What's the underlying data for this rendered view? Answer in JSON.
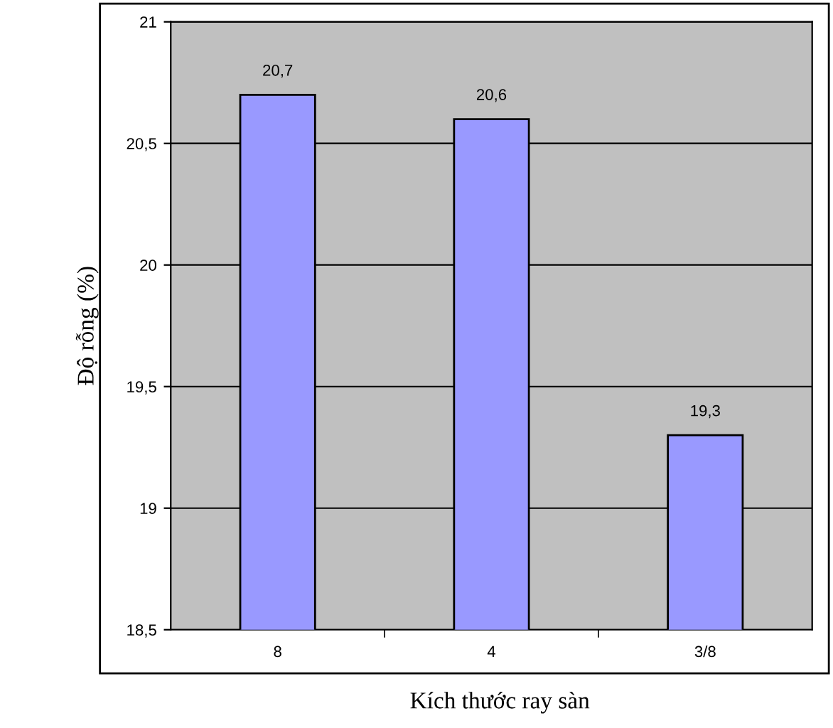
{
  "chart_data": {
    "type": "bar",
    "xlabel": "Kích thước ray sàn",
    "ylabel": "Độ rỗng (%)",
    "categories": [
      "8",
      "4",
      "3/8"
    ],
    "values": [
      20.7,
      20.6,
      19.3
    ],
    "value_labels": [
      "20,7",
      "20,6",
      "19,3"
    ],
    "color": "#9999ff",
    "ylim": [
      18.5,
      21
    ],
    "yticks": [
      {
        "value": 18.5,
        "label": "18,5"
      },
      19,
      {
        "value": 19.5,
        "label": "19,5"
      },
      20,
      {
        "value": 20.5,
        "label": "20,5"
      },
      21
    ],
    "grid": "y",
    "legend": false
  }
}
